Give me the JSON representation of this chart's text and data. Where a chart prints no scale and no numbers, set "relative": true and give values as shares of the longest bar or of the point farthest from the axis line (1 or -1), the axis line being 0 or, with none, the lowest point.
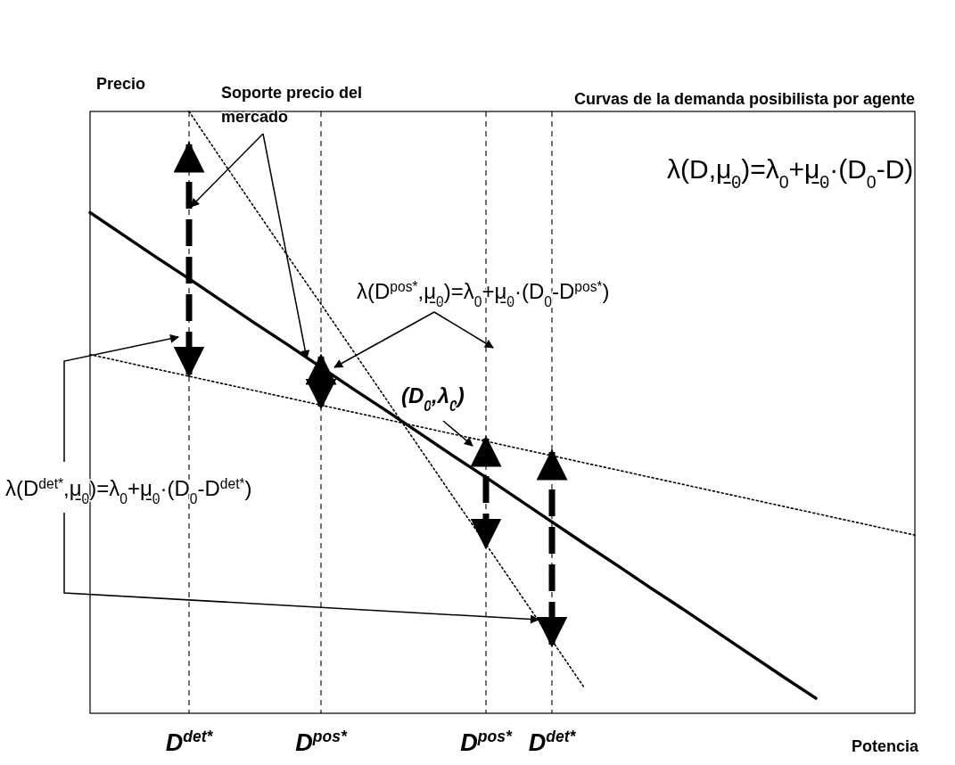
{
  "chart_data": {
    "type": "line",
    "title": "Curvas de la demanda posibilista por agente",
    "xlabel": "Potencia",
    "ylabel": "Precio",
    "relative": true,
    "tick_labels": "x",
    "grid": "x",
    "categories": [
      null,
      null,
      null,
      "D$^{det*}$",
      null,
      null,
      null,
      "D$^{pos*}$",
      null,
      null,
      null,
      null,
      "D$^{pos*}$",
      null,
      "D$^{det*}$",
      null,
      null,
      null,
      null,
      null,
      null,
      null,
      null,
      null,
      null,
      null
    ],
    "series": [
      {
        "color": "#000000",
        "line_style": "solid",
        "values": [
          0.832,
          0.795,
          0.758,
          0.722,
          0.685,
          0.648,
          0.612,
          0.575,
          0.538,
          0.502,
          0.465,
          0.428,
          0.392,
          0.355,
          0.318,
          0.281,
          0.245,
          0.208,
          0.172,
          0.135,
          0.098,
          0.061,
          0.025,
          null,
          null,
          null
        ]
      },
      {
        "color": "#000000",
        "line_style": "dotted",
        "values": [
          null,
          null,
          null,
          1.0,
          0.919,
          0.839,
          0.759,
          0.68,
          0.6,
          0.52,
          0.44,
          0.36,
          0.281,
          0.201,
          0.121,
          0.041,
          null,
          null,
          null,
          null,
          null,
          null,
          null,
          null,
          null,
          null
        ]
      },
      {
        "color": "#000000",
        "line_style": "dotted",
        "values": [
          0.596,
          0.584,
          0.572,
          0.56,
          0.548,
          0.536,
          0.524,
          0.512,
          0.5,
          0.488,
          0.476,
          0.464,
          0.452,
          0.44,
          0.428,
          0.416,
          0.404,
          0.392,
          0.38,
          0.368,
          0.356,
          0.344,
          0.332,
          0.32,
          0.308,
          0.296
        ]
      }
    ],
    "annotations": [
      "Soporte precio del mercado",
      "λ(D,μ̲$_{0}$)=λ$_{0}$+μ̲$_{0}$·(D$_{0}$-D)",
      "λ(D$^{pos*}$,μ̲$_{0}$)=λ$_{0}$+μ̲$_{0}$·(D$_{0}$-D$^{pos*}$)",
      "(D$_{0}$,λ$_{0}$)",
      "λ(D$^{det*}$,μ̲$_{0}$)=λ$_{0}$+μ̲$_{0}$·(D$_{0}$-D$^{det*}$)"
    ]
  }
}
